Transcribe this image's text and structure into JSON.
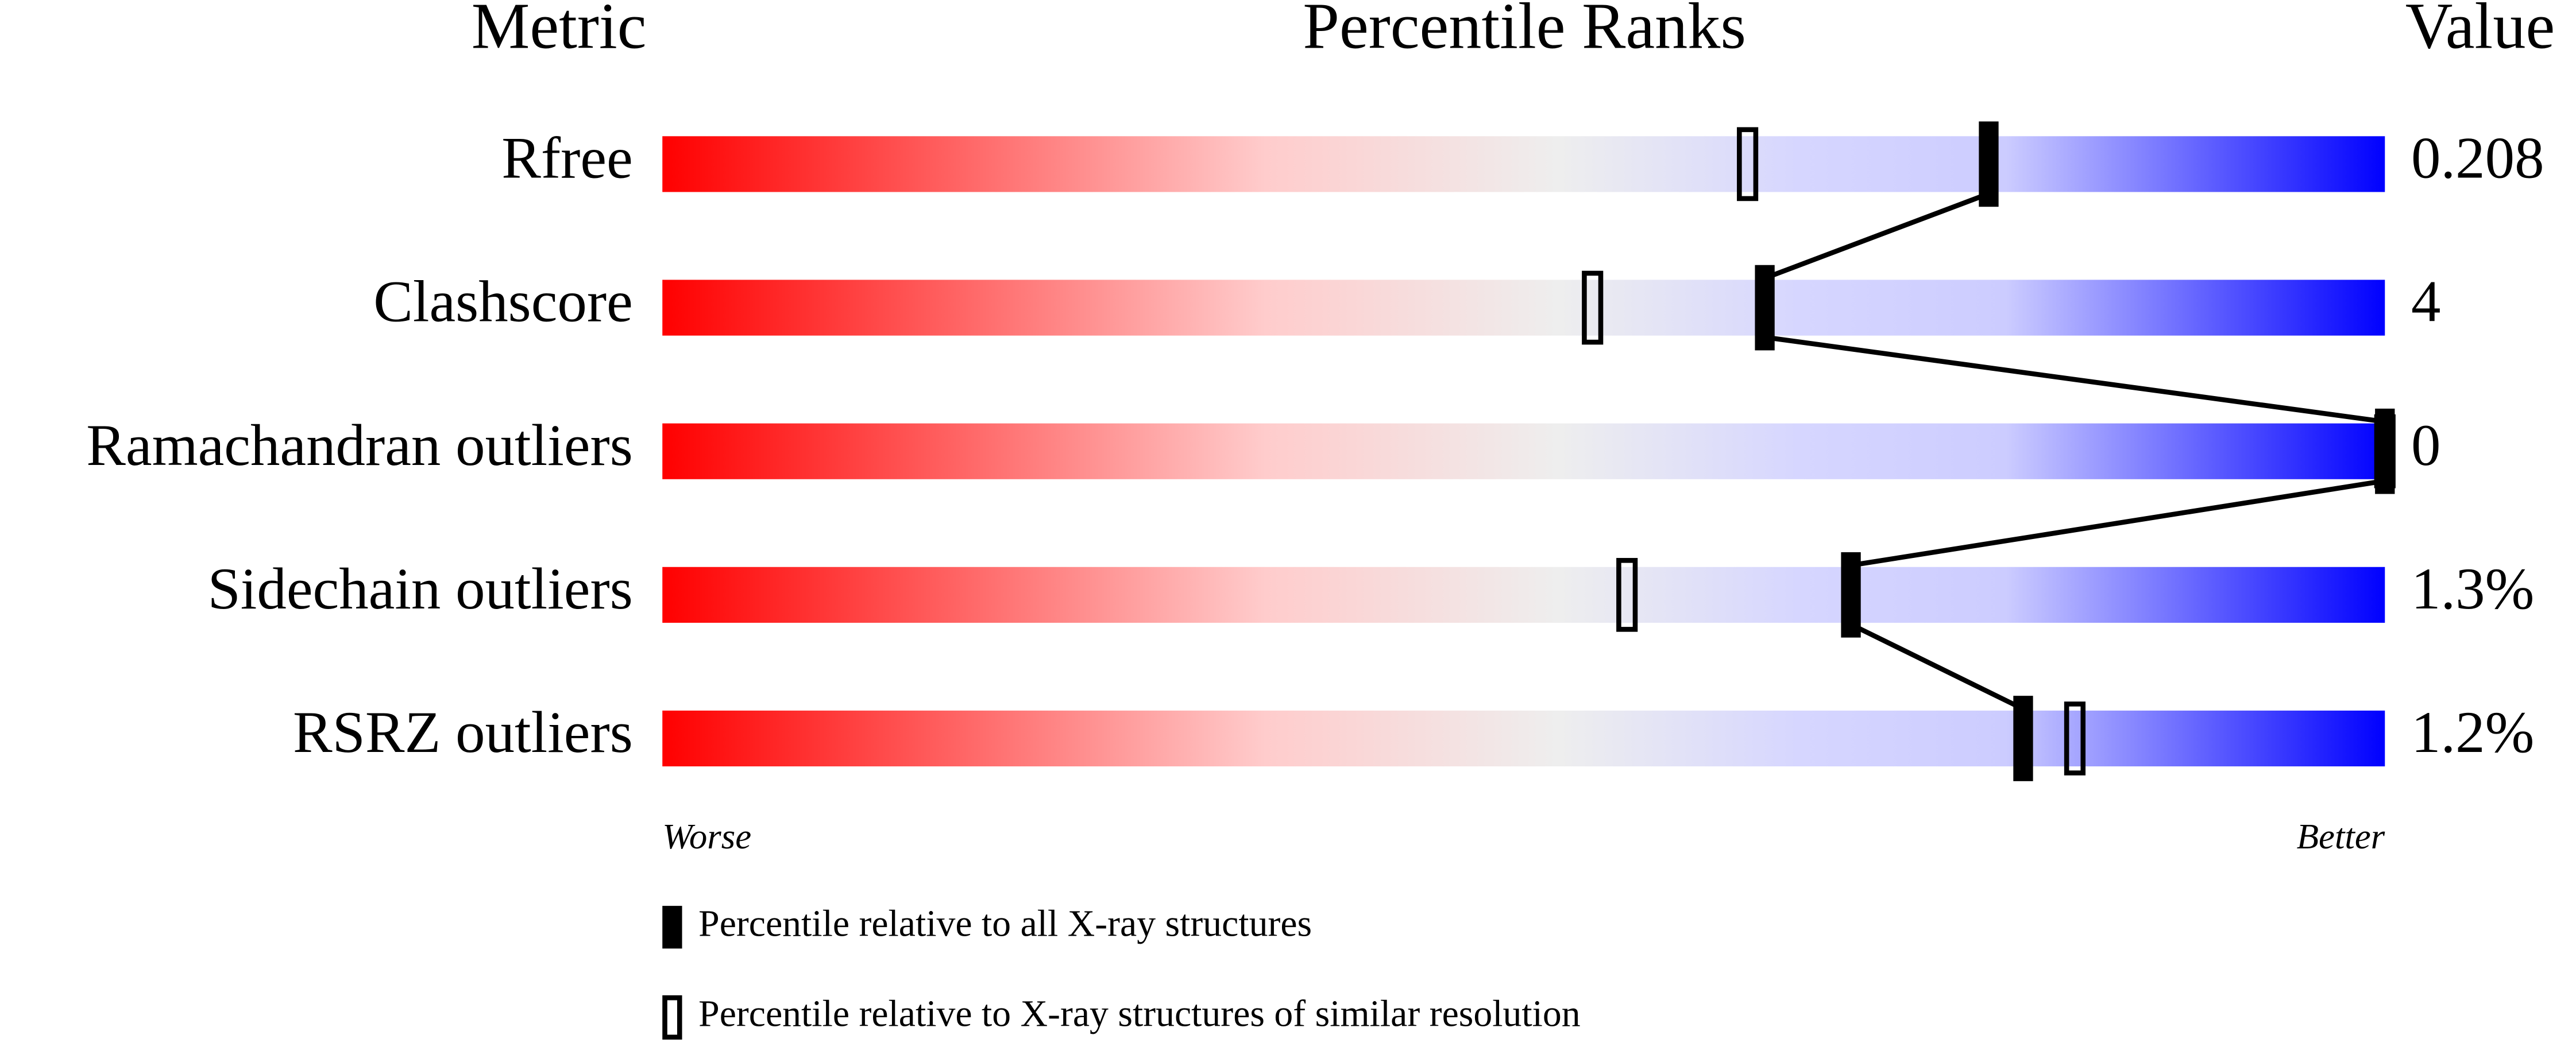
{
  "chart_data": {
    "type": "percentile-slider",
    "metric_header": "Metric",
    "title": "Percentile Ranks",
    "value_header": "Value",
    "categories": [
      "Rfree",
      "Clashscore",
      "Ramachandran outliers",
      "Sidechain outliers",
      "RSRZ outliers"
    ],
    "values": [
      0.208,
      4,
      0,
      1.3,
      1.2
    ],
    "value_labels": [
      "0.208",
      "4",
      "0",
      "1.3%",
      "1.2%"
    ],
    "xlim": [
      0,
      100
    ],
    "x_left_label": "Worse",
    "x_right_label": "Better",
    "series": [
      {
        "name": "Percentile relative to all X-ray structures",
        "color": "#000000",
        "style": "filled",
        "values": [
          77,
          64,
          100,
          69,
          79
        ]
      },
      {
        "name": "Percentile relative to X-ray structures of similar resolution",
        "color": "#000000",
        "style": "hollow",
        "values": [
          63,
          54,
          100,
          56,
          82
        ]
      }
    ]
  }
}
